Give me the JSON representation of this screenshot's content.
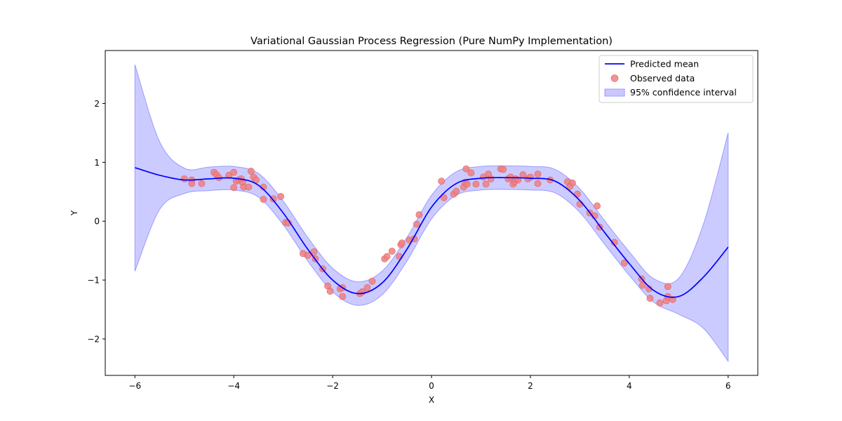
{
  "chart_data": {
    "type": "line",
    "title": "Variational Gaussian Process Regression (Pure NumPy Implementation)",
    "xlabel": "X",
    "ylabel": "Y",
    "xlim": [
      -6.6,
      6.6
    ],
    "ylim": [
      -2.62,
      2.9
    ],
    "xticks": [
      -6,
      -4,
      -2,
      0,
      2,
      4,
      6
    ],
    "yticks": [
      -2,
      -1,
      0,
      1,
      2
    ],
    "xtick_labels": [
      "−6",
      "−4",
      "−2",
      "0",
      "2",
      "4",
      "6"
    ],
    "ytick_labels": [
      "−2",
      "−1",
      "0",
      "1",
      "2"
    ],
    "grid": false,
    "legend_position": "top-right",
    "colors": {
      "mean": "#0000ff",
      "points": "#f08080",
      "points_edge": "#e06060",
      "band": "#c8c8ff",
      "band_edge": "#9b9bff"
    },
    "series": [
      {
        "name": "Predicted mean",
        "kind": "line",
        "x": [
          -6.0,
          -5.5,
          -5.0,
          -4.5,
          -4.0,
          -3.5,
          -3.0,
          -2.5,
          -2.0,
          -1.5,
          -1.0,
          -0.5,
          0.0,
          0.5,
          1.0,
          1.5,
          2.0,
          2.5,
          3.0,
          3.5,
          4.0,
          4.5,
          5.0,
          5.5,
          6.0
        ],
        "y": [
          0.91,
          0.78,
          0.7,
          0.72,
          0.73,
          0.61,
          0.14,
          -0.48,
          -1.0,
          -1.23,
          -1.05,
          -0.48,
          0.24,
          0.64,
          0.73,
          0.74,
          0.73,
          0.68,
          0.35,
          -0.19,
          -0.72,
          -1.18,
          -1.28,
          -0.95,
          -0.44
        ]
      },
      {
        "name": "Observed data",
        "kind": "scatter",
        "x": [
          -5.0,
          -4.85,
          -4.85,
          -4.65,
          -4.4,
          -4.35,
          -4.3,
          -4.1,
          -4.0,
          -4.0,
          -3.95,
          -3.9,
          -3.85,
          -3.82,
          -3.8,
          -3.7,
          -3.65,
          -3.6,
          -3.55,
          -3.4,
          -3.4,
          -3.2,
          -3.05,
          -2.95,
          -2.9,
          -2.6,
          -2.5,
          -2.38,
          -2.35,
          -2.2,
          -2.1,
          -2.05,
          -1.85,
          -1.8,
          -1.8,
          -1.45,
          -1.4,
          -1.3,
          -1.2,
          -0.95,
          -0.9,
          -0.8,
          -0.65,
          -0.62,
          -0.6,
          -0.45,
          -0.35,
          -0.3,
          -0.25,
          0.2,
          0.25,
          0.45,
          0.5,
          0.65,
          0.68,
          0.7,
          0.72,
          0.8,
          0.9,
          1.05,
          1.1,
          1.15,
          1.2,
          1.4,
          1.45,
          1.55,
          1.6,
          1.65,
          1.68,
          1.7,
          1.75,
          1.85,
          1.95,
          2.0,
          2.15,
          2.15,
          2.4,
          2.75,
          2.8,
          2.85,
          2.95,
          3.0,
          3.2,
          3.3,
          3.35,
          3.4,
          3.7,
          3.9,
          4.25,
          4.27,
          4.4,
          4.42,
          4.62,
          4.75,
          4.78,
          4.78,
          4.88
        ],
        "y": [
          0.72,
          0.7,
          0.64,
          0.64,
          0.83,
          0.79,
          0.74,
          0.78,
          0.83,
          0.57,
          0.68,
          0.7,
          0.72,
          0.66,
          0.58,
          0.58,
          0.85,
          0.75,
          0.7,
          0.37,
          0.58,
          0.38,
          0.42,
          -0.02,
          -0.03,
          -0.55,
          -0.58,
          -0.52,
          -0.64,
          -0.81,
          -1.1,
          -1.19,
          -1.15,
          -1.28,
          -1.13,
          -1.23,
          -1.2,
          -1.13,
          -1.02,
          -0.64,
          -0.6,
          -0.51,
          -0.6,
          -0.4,
          -0.37,
          -0.32,
          -0.3,
          -0.05,
          0.11,
          0.68,
          0.4,
          0.46,
          0.51,
          0.58,
          0.66,
          0.89,
          0.63,
          0.82,
          0.63,
          0.75,
          0.63,
          0.8,
          0.72,
          0.89,
          0.88,
          0.72,
          0.75,
          0.63,
          0.67,
          0.72,
          0.7,
          0.79,
          0.72,
          0.75,
          0.8,
          0.64,
          0.7,
          0.67,
          0.59,
          0.65,
          0.46,
          0.29,
          0.14,
          0.09,
          0.26,
          -0.1,
          -0.36,
          -0.71,
          -0.98,
          -1.09,
          -1.15,
          -1.31,
          -1.39,
          -1.35,
          -1.28,
          -1.11,
          -1.33
        ]
      },
      {
        "name": "95% confidence interval",
        "kind": "band",
        "x": [
          -6.0,
          -5.5,
          -5.0,
          -4.5,
          -4.0,
          -3.5,
          -3.0,
          -2.5,
          -2.0,
          -1.5,
          -1.0,
          -0.5,
          0.0,
          0.5,
          1.0,
          1.5,
          2.0,
          2.5,
          3.0,
          3.5,
          4.0,
          4.5,
          5.0,
          5.5,
          6.0
        ],
        "lower": [
          -0.85,
          0.2,
          0.47,
          0.52,
          0.53,
          0.41,
          -0.06,
          -0.68,
          -1.2,
          -1.43,
          -1.25,
          -0.68,
          0.04,
          0.44,
          0.53,
          0.54,
          0.53,
          0.48,
          0.15,
          -0.39,
          -0.92,
          -1.38,
          -1.58,
          -1.82,
          -2.38
        ],
        "upper": [
          2.66,
          1.35,
          0.9,
          0.92,
          0.93,
          0.81,
          0.34,
          -0.28,
          -0.8,
          -1.03,
          -0.85,
          -0.28,
          0.44,
          0.84,
          0.93,
          0.94,
          0.93,
          0.88,
          0.55,
          0.01,
          -0.52,
          -0.98,
          -0.97,
          -0.05,
          1.5
        ]
      }
    ]
  }
}
